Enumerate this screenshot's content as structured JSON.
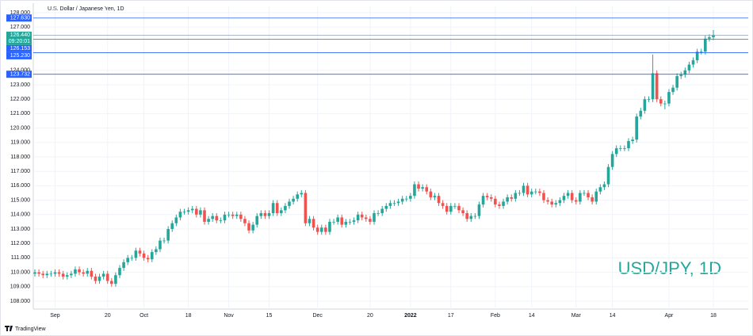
{
  "chart_data": {
    "type": "candlestick",
    "title": "U.S. Dollar / Japanese Yen, 1D",
    "watermark": "USD/JPY, 1D",
    "brand": "TradingView",
    "up_color": "#26a69a",
    "down_color": "#ef5350",
    "grid": true,
    "categories": [
      null,
      null,
      null,
      null,
      null,
      "Sep",
      null,
      null,
      null,
      null,
      null,
      null,
      null,
      null,
      null,
      null,
      null,
      null,
      "20",
      null,
      null,
      null,
      null,
      null,
      null,
      null,
      null,
      "Oct",
      null,
      null,
      null,
      null,
      null,
      null,
      null,
      null,
      null,
      null,
      "18",
      null,
      null,
      null,
      null,
      null,
      null,
      null,
      null,
      null,
      "Nov",
      null,
      null,
      null,
      null,
      null,
      null,
      null,
      null,
      null,
      "15",
      null,
      null,
      null,
      null,
      null,
      null,
      null,
      null,
      null,
      null,
      null,
      "Dec",
      null,
      null,
      null,
      null,
      null,
      null,
      null,
      null,
      null,
      null,
      null,
      null,
      "20",
      null,
      null,
      null,
      null,
      null,
      null,
      null,
      null,
      null,
      "2022",
      null,
      null,
      null,
      null,
      null,
      null,
      null,
      null,
      null,
      "17",
      null,
      null,
      null,
      null,
      null,
      null,
      null,
      null,
      null,
      null,
      "Feb",
      null,
      null,
      null,
      null,
      null,
      null,
      null,
      null,
      "14",
      null,
      null,
      null,
      null,
      null,
      null,
      null,
      null,
      null,
      null,
      "Mar",
      null,
      null,
      null,
      null,
      null,
      null,
      null,
      null,
      "14",
      null,
      null,
      null,
      null,
      null,
      null,
      null,
      null,
      null,
      null,
      null,
      null,
      null,
      "Apr",
      null,
      null,
      null,
      null,
      null,
      null,
      null,
      null,
      null,
      null,
      "18"
    ],
    "open": [
      109.9,
      110.0,
      109.9,
      109.8,
      109.9,
      109.9,
      110.0,
      109.9,
      109.7,
      109.8,
      109.9,
      110.2,
      110.0,
      109.9,
      110.1,
      109.7,
      109.4,
      109.7,
      109.9,
      109.4,
      109.2,
      109.8,
      110.3,
      110.7,
      111.0,
      111.0,
      111.5,
      111.3,
      111.0,
      110.9,
      111.4,
      111.6,
      112.2,
      112.2,
      113.0,
      113.4,
      113.8,
      114.2,
      114.2,
      114.3,
      114.4,
      114.0,
      114.3,
      113.5,
      113.7,
      113.9,
      113.6,
      113.6,
      114.0,
      114.0,
      113.9,
      114.0,
      113.7,
      113.4,
      112.9,
      113.3,
      113.9,
      114.1,
      113.9,
      114.1,
      114.8,
      114.1,
      114.3,
      114.6,
      114.9,
      115.1,
      115.4,
      115.5,
      113.4,
      113.7,
      113.1,
      112.8,
      113.1,
      112.8,
      113.5,
      113.5,
      113.8,
      113.3,
      113.5,
      113.5,
      113.6,
      114.0,
      113.8,
      113.7,
      113.5,
      114.1,
      114.1,
      114.4,
      114.6,
      114.8,
      114.8,
      114.9,
      115.1,
      115.1,
      115.3,
      116.1,
      115.8,
      115.9,
      115.6,
      115.2,
      115.3,
      114.8,
      114.6,
      114.2,
      114.6,
      114.6,
      114.3,
      114.1,
      113.7,
      113.9,
      113.9,
      114.7,
      115.3,
      115.2,
      115.1,
      114.7,
      114.6,
      114.9,
      115.2,
      115.1,
      115.5,
      115.5,
      116.0,
      115.4,
      115.6,
      115.6,
      115.5,
      115.0,
      114.9,
      114.7,
      114.8,
      115.0,
      115.3,
      115.5,
      115.0,
      114.9,
      115.5,
      115.5,
      115.2,
      114.9,
      115.6,
      115.9,
      116.1,
      117.3,
      118.2,
      118.6,
      118.6,
      118.6,
      119.1,
      119.2,
      120.8,
      121.2,
      122.0,
      122.0,
      123.8,
      122.0,
      121.7,
      121.7,
      122.5,
      122.8,
      123.6,
      123.7,
      124.0,
      124.4,
      124.7,
      125.3,
      125.3,
      126.2,
      126.3
    ],
    "high": [
      110.2,
      110.2,
      110.1,
      110.1,
      110.1,
      110.2,
      110.2,
      110.1,
      110.0,
      110.1,
      110.4,
      110.4,
      110.2,
      110.3,
      110.3,
      109.9,
      109.9,
      110.1,
      110.1,
      109.6,
      110.0,
      110.5,
      110.9,
      111.2,
      111.2,
      111.7,
      111.7,
      111.5,
      111.2,
      111.6,
      111.8,
      112.4,
      112.4,
      113.2,
      113.6,
      114.0,
      114.4,
      114.4,
      114.5,
      114.6,
      114.6,
      114.5,
      114.5,
      113.9,
      114.1,
      114.1,
      113.8,
      114.2,
      114.2,
      114.2,
      114.2,
      114.2,
      113.9,
      113.6,
      113.5,
      114.1,
      114.3,
      114.3,
      114.3,
      115.0,
      115.0,
      114.5,
      114.8,
      115.1,
      115.3,
      115.6,
      115.7,
      115.7,
      113.9,
      113.9,
      113.3,
      113.3,
      113.3,
      113.7,
      113.7,
      114.0,
      114.0,
      113.7,
      113.7,
      113.8,
      114.2,
      114.2,
      114.0,
      113.9,
      114.3,
      114.3,
      114.6,
      114.8,
      115.0,
      115.0,
      115.1,
      115.3,
      115.3,
      115.5,
      116.3,
      116.3,
      116.1,
      116.1,
      115.8,
      115.5,
      115.5,
      115.0,
      114.8,
      114.8,
      114.8,
      114.8,
      114.5,
      114.3,
      114.1,
      114.1,
      114.9,
      115.5,
      115.5,
      115.4,
      115.3,
      114.9,
      115.1,
      115.4,
      115.4,
      115.7,
      115.7,
      116.2,
      116.2,
      115.8,
      115.8,
      115.8,
      115.7,
      115.2,
      115.1,
      115.0,
      115.2,
      115.5,
      115.7,
      115.7,
      115.2,
      115.7,
      115.7,
      115.7,
      115.4,
      115.8,
      116.1,
      116.3,
      117.5,
      118.4,
      118.8,
      118.8,
      118.8,
      119.3,
      119.4,
      121.0,
      121.4,
      122.2,
      122.2,
      125.1,
      124.0,
      122.2,
      121.9,
      122.7,
      123.0,
      123.8,
      123.9,
      124.2,
      124.6,
      124.9,
      125.5,
      125.5,
      126.4,
      126.5,
      126.8
    ],
    "low": [
      109.7,
      109.7,
      109.6,
      109.6,
      109.7,
      109.7,
      109.7,
      109.5,
      109.5,
      109.6,
      109.7,
      109.8,
      109.7,
      109.7,
      109.5,
      109.2,
      109.2,
      109.5,
      109.2,
      109.0,
      109.0,
      109.6,
      110.1,
      110.5,
      110.8,
      110.8,
      111.1,
      110.8,
      110.7,
      110.7,
      111.2,
      111.4,
      112.0,
      112.0,
      112.8,
      113.2,
      113.6,
      114.0,
      114.0,
      114.1,
      113.8,
      113.8,
      113.3,
      113.3,
      113.5,
      113.4,
      113.4,
      113.4,
      113.8,
      113.7,
      113.7,
      113.5,
      113.2,
      112.7,
      112.7,
      113.1,
      113.7,
      113.7,
      113.7,
      113.9,
      113.9,
      113.9,
      114.1,
      114.4,
      114.7,
      114.9,
      115.2,
      113.2,
      113.2,
      112.9,
      112.6,
      112.6,
      112.6,
      112.6,
      113.3,
      113.3,
      113.1,
      113.1,
      113.3,
      113.3,
      113.4,
      113.6,
      113.5,
      113.3,
      113.3,
      113.9,
      113.9,
      114.2,
      114.4,
      114.6,
      114.6,
      114.7,
      114.9,
      114.9,
      115.1,
      115.6,
      115.6,
      115.4,
      115.0,
      115.0,
      114.6,
      114.4,
      114.0,
      114.0,
      114.4,
      114.1,
      113.9,
      113.5,
      113.5,
      113.7,
      113.7,
      114.5,
      115.0,
      114.9,
      114.5,
      114.4,
      114.4,
      114.7,
      114.9,
      114.9,
      115.3,
      115.3,
      115.2,
      115.2,
      115.4,
      115.3,
      114.8,
      114.7,
      114.5,
      114.5,
      114.6,
      114.8,
      115.1,
      114.8,
      114.7,
      114.7,
      115.3,
      115.0,
      114.7,
      114.7,
      115.4,
      115.7,
      115.9,
      117.1,
      118.0,
      118.4,
      118.4,
      118.4,
      118.9,
      119.0,
      120.6,
      121.0,
      121.8,
      121.8,
      121.8,
      121.5,
      121.3,
      121.5,
      122.3,
      122.6,
      123.4,
      123.5,
      123.8,
      124.2,
      124.5,
      125.1,
      125.1,
      126.0,
      126.1
    ],
    "close": [
      110.0,
      109.9,
      109.8,
      109.9,
      109.9,
      110.0,
      109.9,
      109.7,
      109.8,
      109.9,
      110.2,
      110.0,
      109.9,
      110.1,
      109.7,
      109.4,
      109.7,
      109.9,
      109.4,
      109.2,
      109.8,
      110.3,
      110.7,
      111.0,
      111.0,
      111.5,
      111.3,
      111.0,
      110.9,
      111.4,
      111.6,
      112.2,
      112.2,
      113.0,
      113.4,
      113.8,
      114.2,
      114.2,
      114.3,
      114.4,
      114.0,
      114.3,
      113.5,
      113.7,
      113.9,
      113.6,
      113.6,
      114.0,
      114.0,
      113.9,
      114.0,
      113.7,
      113.4,
      112.9,
      113.3,
      113.9,
      114.1,
      113.9,
      114.1,
      114.8,
      114.1,
      114.3,
      114.6,
      114.9,
      115.1,
      115.4,
      115.5,
      113.4,
      113.7,
      113.1,
      112.8,
      113.1,
      112.8,
      113.5,
      113.5,
      113.8,
      113.3,
      113.5,
      113.5,
      113.6,
      114.0,
      113.8,
      113.7,
      113.5,
      114.1,
      114.1,
      114.4,
      114.6,
      114.8,
      114.8,
      114.9,
      115.1,
      115.1,
      115.3,
      116.1,
      115.8,
      115.9,
      115.6,
      115.2,
      115.3,
      114.8,
      114.6,
      114.2,
      114.6,
      114.6,
      114.3,
      114.1,
      113.7,
      113.9,
      113.9,
      114.7,
      115.3,
      115.2,
      115.1,
      114.7,
      114.6,
      114.9,
      115.2,
      115.1,
      115.5,
      115.5,
      116.0,
      115.4,
      115.6,
      115.6,
      115.5,
      115.0,
      114.9,
      114.7,
      114.8,
      115.0,
      115.3,
      115.5,
      115.0,
      114.9,
      115.5,
      115.5,
      115.2,
      114.9,
      115.6,
      115.9,
      116.1,
      117.3,
      118.2,
      118.6,
      118.6,
      118.6,
      119.1,
      119.2,
      120.8,
      121.2,
      122.0,
      122.0,
      123.8,
      122.0,
      121.7,
      121.7,
      122.5,
      122.8,
      123.6,
      123.7,
      124.0,
      124.4,
      124.7,
      125.3,
      125.3,
      126.2,
      126.3,
      126.44
    ],
    "ylim": [
      107.45,
      128.44
    ],
    "yticks": [
      {
        "value": 108,
        "label": "108.000"
      },
      {
        "value": 109,
        "label": "109.000"
      },
      {
        "value": 110,
        "label": "110.000"
      },
      {
        "value": 111,
        "label": "111.000"
      },
      {
        "value": 112,
        "label": "112.000"
      },
      {
        "value": 113,
        "label": "113.000"
      },
      {
        "value": 114,
        "label": "114.000"
      },
      {
        "value": 115,
        "label": "115.000"
      },
      {
        "value": 116,
        "label": "116.000"
      },
      {
        "value": 117,
        "label": "117.000"
      },
      {
        "value": 118,
        "label": "118.000"
      },
      {
        "value": 119,
        "label": "119.000"
      },
      {
        "value": 120,
        "label": "120.000"
      },
      {
        "value": 121,
        "label": "121.000"
      },
      {
        "value": 122,
        "label": "122.000"
      },
      {
        "value": 123,
        "label": "123.000"
      },
      {
        "value": 124,
        "label": "124.000"
      },
      {
        "value": 127,
        "label": "127.000"
      },
      {
        "value": 128,
        "label": "128.000"
      }
    ],
    "levels": [
      {
        "value": 127.63,
        "label": "127.630"
      },
      {
        "value": 126.153,
        "label": "126.153"
      },
      {
        "value": 125.23,
        "label": "125.230"
      },
      {
        "value": 123.732,
        "label": "123.732"
      }
    ],
    "level_color": "#2962ff",
    "last_price": {
      "value": 126.44,
      "label": "126.440",
      "countdown": "09:20:01",
      "color": "#26a69a"
    }
  }
}
